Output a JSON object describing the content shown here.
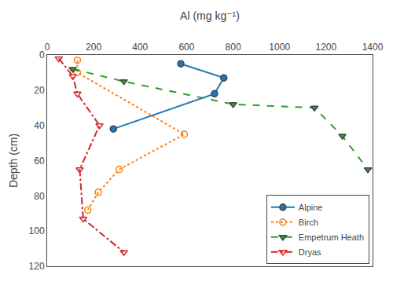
{
  "chart_data": {
    "type": "line",
    "x_label": "Al (mg kg⁻¹)",
    "y_label": "Depth (cm)",
    "xlim": [
      0,
      1400
    ],
    "ylim": [
      120,
      0
    ],
    "xticks": [
      0,
      200,
      400,
      600,
      800,
      1000,
      1200,
      1400
    ],
    "yticks": [
      0,
      20,
      40,
      60,
      80,
      100,
      120
    ],
    "grid": false,
    "legend": "lower right",
    "series": [
      {
        "name": "Alpine",
        "x": [
          575,
          760,
          720,
          285
        ],
        "values": [
          5,
          13,
          22,
          42
        ],
        "line_style": "solid",
        "marker": "circle"
      },
      {
        "name": "Birch",
        "x": [
          130,
          130,
          590,
          310,
          220,
          175
        ],
        "values": [
          3,
          10,
          45,
          65,
          78,
          88
        ],
        "line_style": "dotted",
        "marker": "circle-open"
      },
      {
        "name": "Empetrum Heath",
        "x": [
          110,
          330,
          800,
          1150,
          1270,
          1380
        ],
        "values": [
          8,
          15,
          28,
          30,
          46,
          65
        ],
        "line_style": "dashed",
        "marker": "triangle-down"
      },
      {
        "name": "Dryas",
        "x": [
          50,
          110,
          130,
          225,
          140,
          155,
          330
        ],
        "values": [
          2,
          12,
          22,
          40,
          65,
          93,
          112
        ],
        "line_style": "dashdot",
        "marker": "triangle-down-open"
      }
    ]
  }
}
